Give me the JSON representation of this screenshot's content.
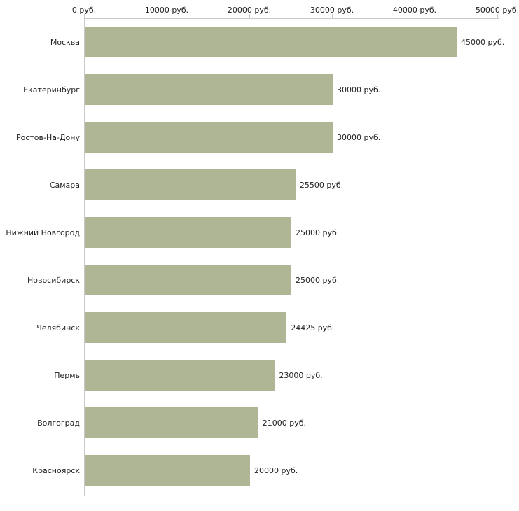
{
  "chart_data": {
    "type": "bar",
    "orientation": "horizontal",
    "title": "",
    "xlabel": "",
    "ylabel": "",
    "xlim": [
      0,
      50000
    ],
    "grid": false,
    "legend": false,
    "bar_color": "#aeb695",
    "x_ticks": [
      {
        "value": 0,
        "label": "0 руб."
      },
      {
        "value": 10000,
        "label": "10000 руб."
      },
      {
        "value": 20000,
        "label": "20000 руб."
      },
      {
        "value": 30000,
        "label": "30000 руб."
      },
      {
        "value": 40000,
        "label": "40000 руб."
      },
      {
        "value": 50000,
        "label": "50000 руб."
      }
    ],
    "categories": [
      "Москва",
      "Екатеринбург",
      "Ростов-На-Дону",
      "Самара",
      "Нижний Новгород",
      "Новосибирск",
      "Челябинск",
      "Пермь",
      "Волгоград",
      "Красноярск"
    ],
    "values": [
      45000,
      30000,
      30000,
      25500,
      25000,
      25000,
      24425,
      23000,
      21000,
      20000
    ],
    "value_labels": [
      "45000 руб.",
      "30000 руб.",
      "30000 руб.",
      "25500 руб.",
      "25000 руб.",
      "25000 руб.",
      "24425 руб.",
      "23000 руб.",
      "21000 руб.",
      "20000 руб."
    ]
  }
}
